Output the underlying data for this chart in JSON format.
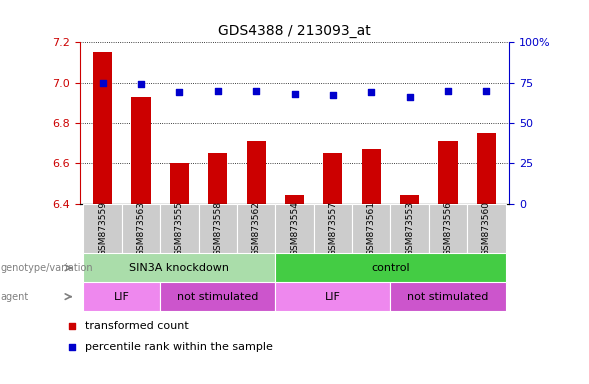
{
  "title": "GDS4388 / 213093_at",
  "samples": [
    "GSM873559",
    "GSM873563",
    "GSM873555",
    "GSM873558",
    "GSM873562",
    "GSM873554",
    "GSM873557",
    "GSM873561",
    "GSM873553",
    "GSM873556",
    "GSM873560"
  ],
  "sample_short": [
    "3559",
    "3563",
    "3555",
    "3558",
    "3562",
    "3554",
    "3557",
    "3561",
    "3553",
    "3556",
    "3560"
  ],
  "transformed_counts": [
    7.15,
    6.93,
    6.6,
    6.65,
    6.71,
    6.44,
    6.65,
    6.67,
    6.44,
    6.71,
    6.75
  ],
  "percentile_ranks": [
    75,
    74,
    69,
    70,
    70,
    68,
    67,
    69,
    66,
    70,
    70
  ],
  "ylim_left": [
    6.4,
    7.2
  ],
  "ylim_right": [
    0,
    100
  ],
  "yticks_left": [
    6.4,
    6.6,
    6.8,
    7.0,
    7.2
  ],
  "yticks_right": [
    0,
    25,
    50,
    75,
    100
  ],
  "bar_color": "#cc0000",
  "dot_color": "#0000cc",
  "bar_width": 0.5,
  "groups": [
    {
      "label": "SIN3A knockdown",
      "start": 0,
      "end": 4,
      "color": "#aaddaa"
    },
    {
      "label": "control",
      "start": 5,
      "end": 10,
      "color": "#44cc44"
    }
  ],
  "agents": [
    {
      "label": "LIF",
      "start": 0,
      "end": 1,
      "color": "#ee88ee"
    },
    {
      "label": "not stimulated",
      "start": 2,
      "end": 4,
      "color": "#cc55cc"
    },
    {
      "label": "LIF",
      "start": 5,
      "end": 7,
      "color": "#ee88ee"
    },
    {
      "label": "not stimulated",
      "start": 8,
      "end": 10,
      "color": "#cc55cc"
    }
  ],
  "legend_items": [
    {
      "label": "transformed count",
      "color": "#cc0000"
    },
    {
      "label": "percentile rank within the sample",
      "color": "#0000cc"
    }
  ],
  "left_label_color": "#cc0000",
  "right_label_color": "#0000cc",
  "genotype_label": "genotype/variation",
  "agent_label": "agent",
  "xlabel_prefix": "GSM87"
}
